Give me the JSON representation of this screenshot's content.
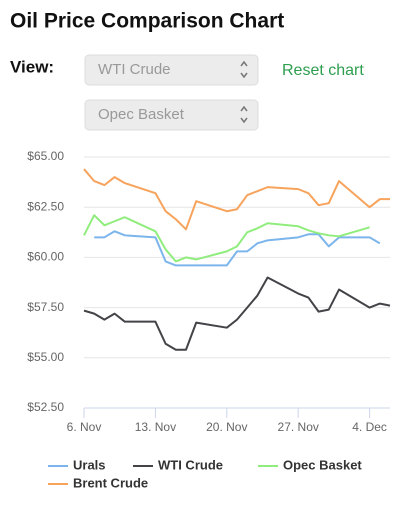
{
  "title": "Oil Price Comparison Chart",
  "controls": {
    "view_label": "View:",
    "selects": [
      "WTI Crude",
      "Opec Basket"
    ],
    "reset": "Reset chart"
  },
  "chart_data": {
    "type": "line",
    "x": [
      "6. Nov",
      "7. Nov",
      "8. Nov",
      "9. Nov",
      "10. Nov",
      "13. Nov",
      "14. Nov",
      "15. Nov",
      "16. Nov",
      "17. Nov",
      "20. Nov",
      "21. Nov",
      "22. Nov",
      "23. Nov",
      "24. Nov",
      "27. Nov",
      "28. Nov",
      "29. Nov",
      "30. Nov",
      "1. Dec",
      "4. Dec",
      "5. Dec",
      "6. Dec"
    ],
    "series": [
      {
        "name": "Urals",
        "color": "#7cb5ec",
        "values": [
          null,
          61.0,
          61.0,
          61.3,
          61.1,
          61.0,
          59.8,
          59.6,
          59.6,
          59.6,
          59.6,
          60.3,
          60.3,
          60.7,
          60.85,
          61.0,
          61.15,
          61.15,
          60.55,
          61.0,
          61.0,
          60.7,
          null
        ]
      },
      {
        "name": "WTI Crude",
        "color": "#434348",
        "values": [
          57.35,
          57.2,
          56.9,
          57.2,
          56.8,
          56.8,
          55.7,
          55.4,
          55.4,
          56.75,
          56.5,
          56.9,
          57.5,
          58.1,
          59.0,
          58.2,
          58.0,
          57.3,
          57.4,
          58.4,
          57.5,
          57.7,
          57.6
        ]
      },
      {
        "name": "Opec Basket",
        "color": "#90ed7d",
        "values": [
          61.1,
          62.1,
          61.6,
          61.8,
          62.0,
          61.3,
          60.4,
          59.8,
          60.0,
          59.9,
          60.3,
          60.55,
          61.25,
          61.45,
          61.7,
          61.55,
          61.35,
          61.2,
          61.1,
          61.05,
          61.5,
          null,
          null
        ]
      },
      {
        "name": "Brent Crude",
        "color": "#f7a35c",
        "values": [
          64.4,
          63.8,
          63.6,
          64.0,
          63.7,
          63.2,
          62.3,
          61.9,
          61.4,
          62.8,
          62.3,
          62.4,
          63.1,
          63.3,
          63.5,
          63.4,
          63.2,
          62.6,
          62.7,
          63.8,
          62.5,
          62.9,
          62.9
        ]
      }
    ],
    "xlim": [
      "6. Nov",
      "6. Dec"
    ],
    "xticks": [
      "6. Nov",
      "13. Nov",
      "20. Nov",
      "27. Nov",
      "4. Dec"
    ],
    "ylim": [
      52.5,
      65
    ],
    "yticks": [
      {
        "value": 52.5,
        "label": "$52.50"
      },
      {
        "value": 55,
        "label": "$55.00"
      },
      {
        "value": 57.5,
        "label": "$57.50"
      },
      {
        "value": 60,
        "label": "$60.00"
      },
      {
        "value": 62.5,
        "label": "$62.50"
      },
      {
        "value": 65,
        "label": "$65.00"
      }
    ],
    "grid": true
  }
}
